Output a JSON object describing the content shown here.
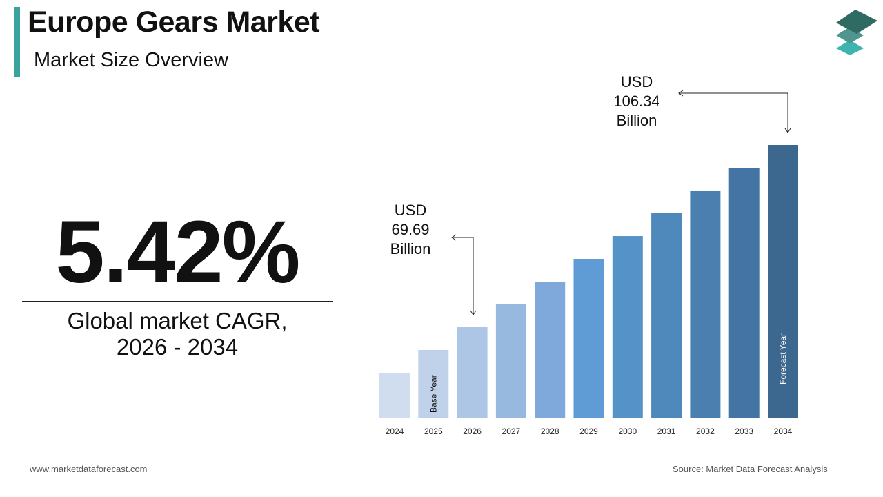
{
  "header": {
    "title": "Europe Gears Market",
    "subtitle": "Market Size Overview"
  },
  "kpi": {
    "cagr": "5.42%",
    "label_line1": "Global market CAGR,",
    "label_line2": "2026 - 2034"
  },
  "footer": {
    "website": "www.marketdataforecast.com",
    "source": "Source: Market Data Forecast Analysis"
  },
  "logo": {
    "icon": "stacked-layers-icon",
    "colors": [
      "#2f6b63",
      "#4f9690",
      "#3fb3ae"
    ]
  },
  "chart_data": {
    "type": "bar",
    "categories": [
      "2024",
      "2025",
      "2026",
      "2027",
      "2028",
      "2029",
      "2030",
      "2031",
      "2032",
      "2033",
      "2034"
    ],
    "values": [
      60.53,
      65.11,
      69.69,
      74.27,
      78.85,
      83.43,
      88.01,
      92.6,
      97.18,
      101.76,
      106.34
    ],
    "colors": [
      "#d0ddee",
      "#bfd2ea",
      "#aec6e5",
      "#97b9df",
      "#7ea9da",
      "#5f9bd4",
      "#5592c8",
      "#4f88bb",
      "#4a7fb0",
      "#4374a3",
      "#3c6890"
    ],
    "bar_labels": {
      "2025": "Base Year",
      "2034": "Forecast Year"
    },
    "annotations": [
      {
        "category": "2026",
        "lines": [
          "USD",
          "69.69",
          "Billion"
        ]
      },
      {
        "category": "2034",
        "lines": [
          "USD",
          "106.34",
          "Billion"
        ]
      }
    ],
    "title": "",
    "xlabel": "",
    "ylabel": "",
    "grid": false,
    "legend": "none"
  }
}
